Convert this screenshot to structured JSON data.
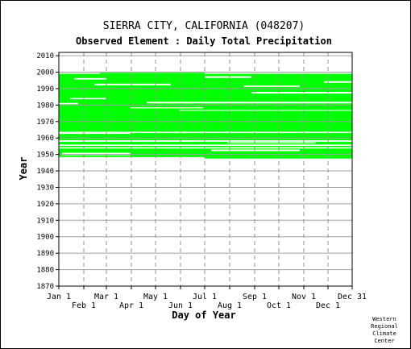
{
  "chart_data": {
    "type": "heatmap",
    "title": "SIERRA CITY, CALIFORNIA   (048207)",
    "subtitle": "Observed Element : Daily Total Precipitation",
    "xlabel": "Day of Year",
    "ylabel": "Year",
    "xlim": [
      1,
      365
    ],
    "ylim": [
      1870,
      2012
    ],
    "grid": true,
    "y_ticks": [
      2010,
      2000,
      1990,
      1980,
      1970,
      1960,
      1950,
      1940,
      1930,
      1920,
      1910,
      1900,
      1890,
      1880,
      1870
    ],
    "x_ticks_upper": [
      {
        "label": "Jan 1",
        "day": 1
      },
      {
        "label": "Mar 1",
        "day": 60
      },
      {
        "label": "May 1",
        "day": 121
      },
      {
        "label": "Jul 1",
        "day": 182
      },
      {
        "label": "Sep 1",
        "day": 244
      },
      {
        "label": "Nov 1",
        "day": 305
      },
      {
        "label": "Dec 31",
        "day": 365
      }
    ],
    "x_ticks_lower": [
      {
        "label": "Feb 1",
        "day": 32
      },
      {
        "label": "Apr 1",
        "day": 91
      },
      {
        "label": "Jun 1",
        "day": 152
      },
      {
        "label": "Aug 1",
        "day": 213
      },
      {
        "label": "Oct 1",
        "day": 274
      },
      {
        "label": "Dec 1",
        "day": 335
      }
    ],
    "series": [
      {
        "color": "#00ff00",
        "data_ranges": [
          {
            "year_start": 1947.5,
            "year_end": 1948.4,
            "day_start": 182,
            "day_end": 365
          },
          {
            "year_start": 1948.4,
            "year_end": 1953.6,
            "day_start": 1,
            "day_end": 365
          },
          {
            "year_start": 1954.4,
            "year_end": 1955.2,
            "day_start": 1,
            "day_end": 365
          },
          {
            "year_start": 1956.0,
            "year_end": 1957.7,
            "day_start": 1,
            "day_end": 365
          },
          {
            "year_start": 1958.6,
            "year_end": 1963.0,
            "day_start": 1,
            "day_end": 365
          },
          {
            "year_start": 1963.8,
            "year_end": 1988.0,
            "day_start": 1,
            "day_end": 365
          },
          {
            "year_start": 1988.0,
            "year_end": 1999.0,
            "day_start": 1,
            "day_end": 365
          },
          {
            "year_start": 1999.0,
            "year_end": 1999.6,
            "day_start": 52,
            "day_end": 182
          }
        ],
        "gaps": [
          {
            "year_start": 1949.5,
            "year_end": 1951.0,
            "day_start": 5,
            "day_end": 90
          },
          {
            "year_start": 1952.0,
            "year_end": 1953.0,
            "day_start": 190,
            "day_end": 300
          },
          {
            "year_start": 1955.3,
            "year_end": 1955.9,
            "day_start": 55,
            "day_end": 200
          },
          {
            "year_start": 1956.8,
            "year_end": 1957.4,
            "day_start": 210,
            "day_end": 320
          },
          {
            "year_start": 1958.0,
            "year_end": 1958.5,
            "day_start": 10,
            "day_end": 160
          },
          {
            "year_start": 1962.5,
            "year_end": 1963.3,
            "day_start": 1,
            "day_end": 90
          },
          {
            "year_start": 1976.5,
            "year_end": 1977.0,
            "day_start": 150,
            "day_end": 365
          },
          {
            "year_start": 1978.0,
            "year_end": 1978.6,
            "day_start": 90,
            "day_end": 180
          },
          {
            "year_start": 1980.5,
            "year_end": 1981.3,
            "day_start": 1,
            "day_end": 25
          },
          {
            "year_start": 1981.0,
            "year_end": 1982.0,
            "day_start": 110,
            "day_end": 365
          },
          {
            "year_start": 1983.5,
            "year_end": 1984.3,
            "day_start": 15,
            "day_end": 60
          },
          {
            "year_start": 1987.0,
            "year_end": 1988.0,
            "day_start": 240,
            "day_end": 365
          },
          {
            "year_start": 1991.0,
            "year_end": 1991.8,
            "day_start": 230,
            "day_end": 300
          },
          {
            "year_start": 1992.0,
            "year_end": 1993.0,
            "day_start": 45,
            "day_end": 140
          },
          {
            "year_start": 1993.5,
            "year_end": 1994.5,
            "day_start": 330,
            "day_end": 365
          },
          {
            "year_start": 1995.5,
            "year_end": 1996.4,
            "day_start": 20,
            "day_end": 60
          },
          {
            "year_start": 1996.5,
            "year_end": 1997.5,
            "day_start": 182,
            "day_end": 240
          }
        ]
      }
    ]
  },
  "credit": [
    "Western",
    "Regional",
    "Climate",
    "Center"
  ]
}
